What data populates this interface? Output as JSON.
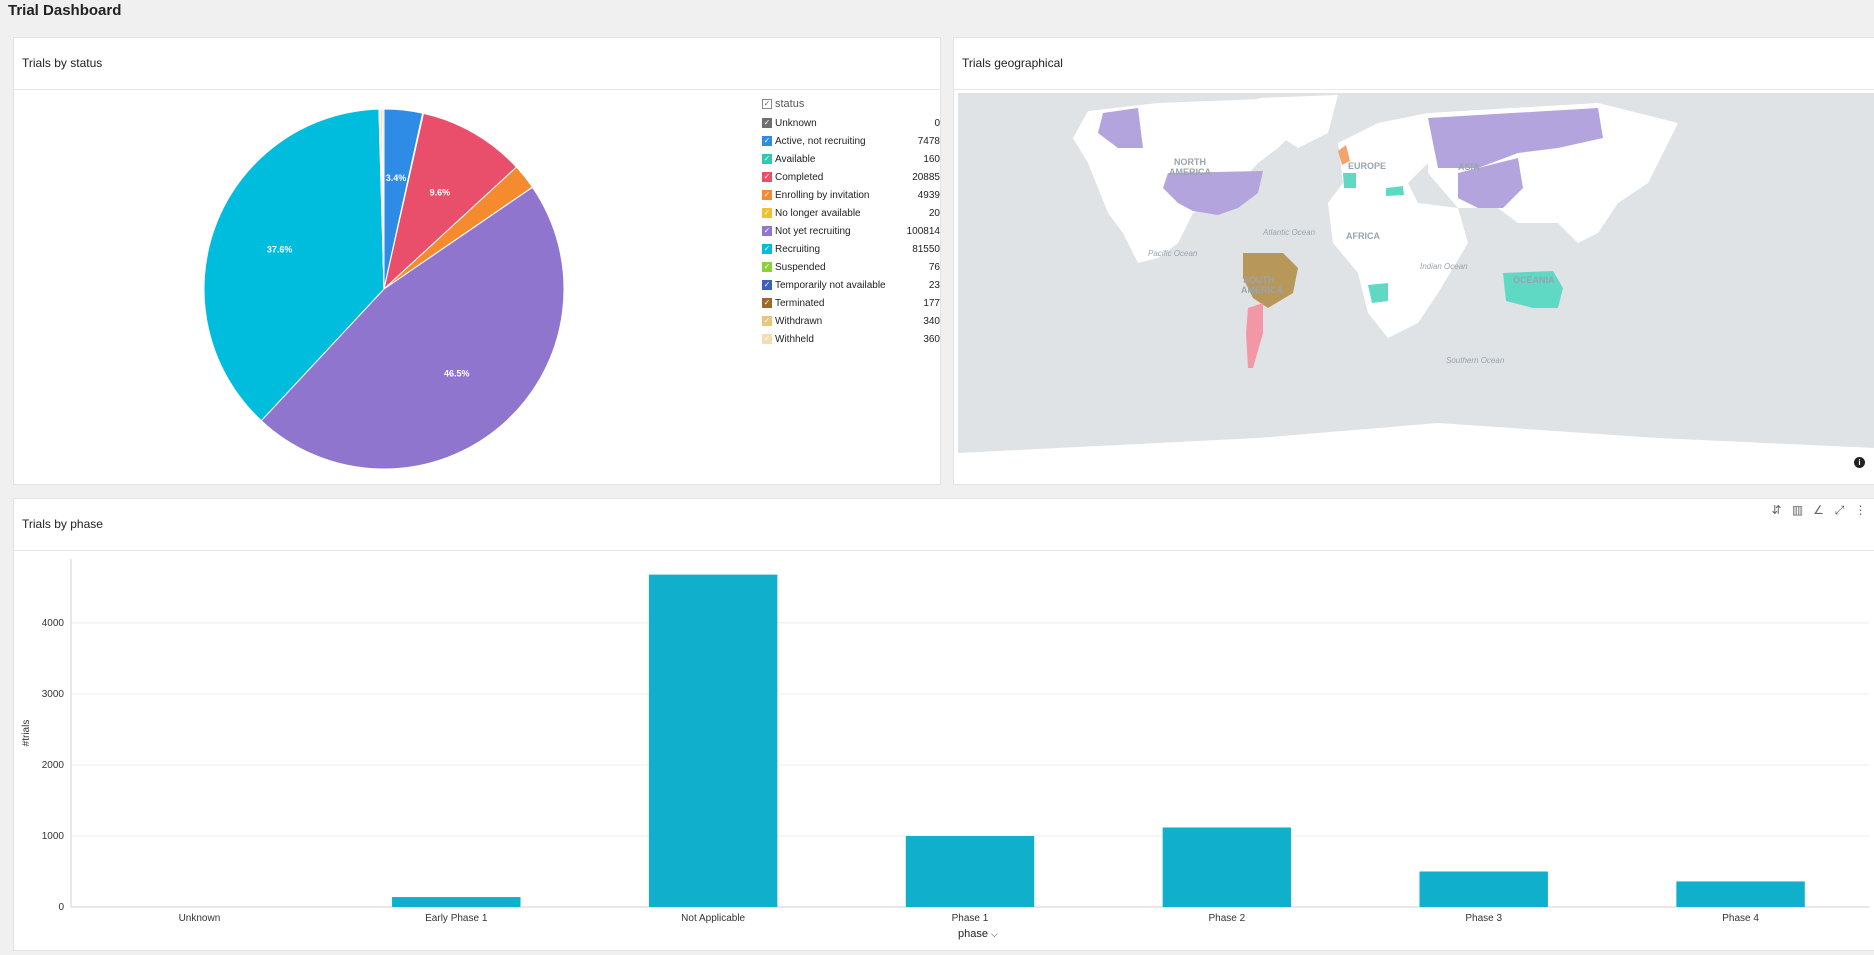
{
  "page": {
    "title": "Trial Dashboard"
  },
  "status_panel": {
    "title": "Trials by status",
    "legend_header": "status"
  },
  "geo_panel": {
    "title": "Trials geographical",
    "labels": {
      "north_america": [
        "NORTH",
        "AMERICA"
      ],
      "south_america": [
        "SOUTH",
        "AMERICA"
      ],
      "europe": "EUROPE",
      "asia": "ASIA",
      "africa": "AFRICA",
      "oceania": "OCEANIA",
      "atlantic": "Atlantic Ocean",
      "pacific": "Pacific Ocean",
      "indian": "Indian Ocean",
      "southern": "Southern Ocean"
    },
    "info_icon": "info-icon"
  },
  "phase_panel": {
    "title": "Trials by phase",
    "toolbar_icons": [
      "sort-icon",
      "bar-chart-icon",
      "line-chart-icon",
      "expand-icon",
      "more-vertical-icon"
    ]
  },
  "chart_data": [
    {
      "type": "pie",
      "title": "Trials by status",
      "categories": [
        "Unknown",
        "Active, not recruiting",
        "Available",
        "Completed",
        "Enrolling by invitation",
        "No longer available",
        "Not yet recruiting",
        "Recruiting",
        "Suspended",
        "Temporarily not available",
        "Terminated",
        "Withdrawn",
        "Withheld"
      ],
      "values": [
        0,
        7478,
        160,
        20885,
        4939,
        20,
        100814,
        81550,
        76,
        23,
        177,
        340,
        360
      ],
      "colors": [
        "#6f6f6f",
        "#2e8be6",
        "#2ec9b0",
        "#e94e6b",
        "#f58a2e",
        "#f2c12e",
        "#9075cf",
        "#00bcdd",
        "#8bd23a",
        "#3a5fc2",
        "#9a6a2c",
        "#e8c47c",
        "#f4ddb0"
      ],
      "data_labels": [
        "",
        "3.4%",
        "",
        "9.6%",
        "",
        "",
        "46.5%",
        "37.6%",
        "",
        "",
        "",
        "",
        ""
      ],
      "legend": "right"
    },
    {
      "type": "bar",
      "title": "Trials by phase",
      "categories": [
        "Unknown",
        "Early Phase 1",
        "Not Applicable",
        "Phase 1",
        "Phase 2",
        "Phase 3",
        "Phase 4"
      ],
      "values": [
        0,
        140,
        4680,
        1000,
        1120,
        500,
        360
      ],
      "xlabel": "phase",
      "ylabel": "#trials",
      "ylim": [
        0,
        4900
      ],
      "yticks": [
        0,
        1000,
        2000,
        3000,
        4000
      ],
      "color": "#10afcb",
      "grid": true
    }
  ]
}
